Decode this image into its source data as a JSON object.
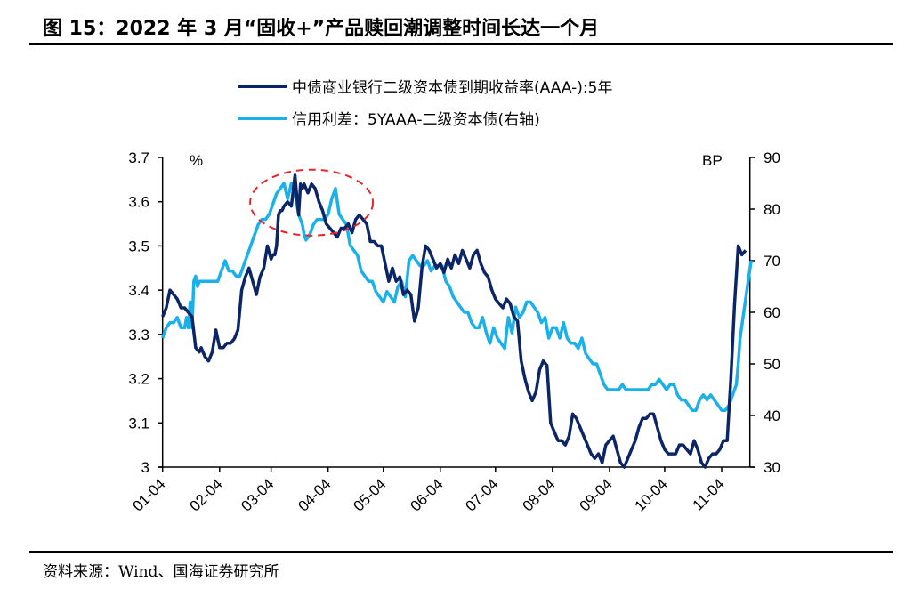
{
  "title": "图 15：2022 年 3 月“固收+”产品赎回潮调整时间长达一个月",
  "source": "资料来源：Wind、国海证券研究所",
  "colors": {
    "yield": "#0b2566",
    "spread": "#1ab0ea",
    "highlight": "#e8242b"
  },
  "chart_data": {
    "type": "line",
    "title": "2022 年 3 月“固收+”产品赎回潮调整时间长达一个月",
    "xlabel": "",
    "ylabel": "%",
    "y2label": "BP",
    "ylim": [
      3.0,
      3.7
    ],
    "y2lim": [
      30,
      90
    ],
    "yticks": [
      "3",
      "3.1",
      "3.2",
      "3.3",
      "3.4",
      "3.5",
      "3.6",
      "3.7"
    ],
    "y2ticks": [
      "30",
      "40",
      "50",
      "60",
      "70",
      "80",
      "90"
    ],
    "x_tick_labels": [
      "01-04",
      "02-04",
      "03-04",
      "04-04",
      "05-04",
      "06-04",
      "07-04",
      "08-04",
      "09-04",
      "10-04",
      "11-04"
    ],
    "x_tick_days": [
      0,
      31,
      59,
      90,
      120,
      151,
      181,
      212,
      243,
      273,
      304
    ],
    "x_end_day": 320,
    "grid": false,
    "legend_position": "top",
    "annotation": "red dashed ellipse highlighting March 2022 peak",
    "annotation_center": {
      "day": 81,
      "value": 3.6
    },
    "series": [
      {
        "name": "中债商业银行二级资本债到期收益率(AAA-):5年",
        "axis": "left",
        "days": [
          0,
          2,
          4,
          6,
          8,
          10,
          12,
          14,
          16,
          18,
          20,
          21,
          23,
          25,
          27,
          29,
          31,
          33,
          35,
          37,
          39,
          41,
          43,
          45,
          47,
          49,
          51,
          53,
          55,
          57,
          59,
          60,
          61,
          62,
          63,
          64,
          65,
          66,
          68,
          70,
          72,
          73,
          74,
          75,
          76,
          77,
          79,
          81,
          83,
          85,
          87,
          89,
          91,
          93,
          95,
          97,
          99,
          101,
          103,
          105,
          107,
          109,
          111,
          113,
          115,
          117,
          119,
          121,
          123,
          125,
          127,
          129,
          131,
          133,
          135,
          137,
          139,
          141,
          143,
          145,
          147,
          149,
          151,
          153,
          155,
          157,
          159,
          161,
          163,
          165,
          167,
          169,
          171,
          173,
          175,
          177,
          179,
          181,
          183,
          185,
          187,
          189,
          191,
          193,
          195,
          197,
          199,
          201,
          203,
          205,
          207,
          209,
          211,
          213,
          215,
          217,
          219,
          221,
          223,
          225,
          227,
          229,
          231,
          233,
          235,
          237,
          239,
          241,
          243,
          245,
          247,
          249,
          251,
          253,
          255,
          257,
          259,
          261,
          263,
          265,
          267,
          269,
          271,
          273,
          275,
          277,
          279,
          281,
          283,
          285,
          287,
          289,
          291,
          293,
          295,
          297,
          299,
          301,
          303,
          305,
          307,
          309,
          311,
          313,
          315,
          317,
          318,
          319,
          320
        ],
        "values": [
          3.34,
          3.36,
          3.4,
          3.39,
          3.38,
          3.36,
          3.36,
          3.35,
          3.34,
          3.27,
          3.26,
          3.27,
          3.25,
          3.24,
          3.26,
          3.31,
          3.27,
          3.27,
          3.28,
          3.28,
          3.29,
          3.31,
          3.4,
          3.43,
          3.45,
          3.42,
          3.39,
          3.43,
          3.45,
          3.5,
          3.47,
          3.48,
          3.48,
          3.5,
          3.57,
          3.58,
          3.58,
          3.59,
          3.6,
          3.59,
          3.66,
          3.61,
          3.57,
          3.64,
          3.63,
          3.64,
          3.62,
          3.64,
          3.63,
          3.6,
          3.58,
          3.55,
          3.54,
          3.53,
          3.52,
          3.54,
          3.54,
          3.55,
          3.53,
          3.56,
          3.57,
          3.56,
          3.55,
          3.51,
          3.51,
          3.5,
          3.5,
          3.46,
          3.42,
          3.45,
          3.42,
          3.43,
          3.39,
          3.4,
          3.39,
          3.33,
          3.36,
          3.45,
          3.5,
          3.49,
          3.47,
          3.45,
          3.46,
          3.44,
          3.47,
          3.45,
          3.48,
          3.46,
          3.49,
          3.47,
          3.45,
          3.48,
          3.49,
          3.46,
          3.44,
          3.43,
          3.4,
          3.38,
          3.37,
          3.36,
          3.38,
          3.37,
          3.34,
          3.33,
          3.24,
          3.2,
          3.17,
          3.15,
          3.17,
          3.22,
          3.24,
          3.23,
          3.1,
          3.08,
          3.06,
          3.06,
          3.05,
          3.07,
          3.12,
          3.11,
          3.09,
          3.07,
          3.05,
          3.03,
          3.02,
          3.03,
          3.01,
          3.05,
          3.06,
          3.07,
          3.04,
          3.01,
          3.0,
          3.02,
          3.04,
          3.06,
          3.09,
          3.11,
          3.11,
          3.12,
          3.12,
          3.09,
          3.06,
          3.04,
          3.03,
          3.03,
          3.03,
          3.05,
          3.05,
          3.04,
          3.03,
          3.06,
          3.04,
          3.01,
          3.0,
          3.02,
          3.03,
          3.03,
          3.04,
          3.06,
          3.06,
          3.2,
          3.37,
          3.5,
          3.48,
          3.49
        ]
      },
      {
        "name": "信用利差：5YAAA-二级资本债(右轴)",
        "axis": "right",
        "days": [
          0,
          2,
          4,
          6,
          8,
          10,
          12,
          13,
          14,
          15,
          16,
          17,
          18,
          19,
          20,
          22,
          24,
          26,
          28,
          30,
          32,
          34,
          36,
          38,
          40,
          42,
          44,
          46,
          48,
          50,
          52,
          54,
          56,
          58,
          60,
          61,
          62,
          64,
          66,
          68,
          70,
          72,
          74,
          76,
          77,
          78,
          80,
          82,
          84,
          86,
          88,
          90,
          92,
          94,
          96,
          98,
          100,
          102,
          104,
          106,
          108,
          110,
          112,
          114,
          116,
          118,
          120,
          122,
          124,
          126,
          128,
          130,
          132,
          134,
          136,
          138,
          140,
          142,
          144,
          146,
          148,
          150,
          152,
          154,
          156,
          158,
          160,
          162,
          164,
          166,
          168,
          170,
          172,
          174,
          176,
          178,
          180,
          182,
          184,
          186,
          188,
          190,
          192,
          194,
          196,
          198,
          200,
          202,
          204,
          206,
          208,
          210,
          212,
          214,
          216,
          218,
          220,
          222,
          224,
          226,
          228,
          230,
          232,
          234,
          236,
          238,
          240,
          242,
          244,
          246,
          248,
          250,
          252,
          254,
          256,
          258,
          260,
          262,
          264,
          266,
          268,
          270,
          272,
          274,
          276,
          278,
          280,
          282,
          284,
          286,
          288,
          290,
          292,
          294,
          296,
          298,
          300,
          302,
          304,
          306,
          308,
          310,
          312,
          313,
          314,
          316,
          318,
          320
        ],
        "values": [
          55,
          57,
          58,
          58,
          59,
          57,
          57,
          59,
          57,
          62,
          57,
          66,
          67,
          65,
          66,
          66,
          66,
          66,
          66,
          66,
          68,
          70,
          68,
          68,
          67,
          67,
          69,
          71,
          73,
          75,
          77,
          78,
          78,
          79,
          81,
          82,
          83,
          84,
          85,
          82,
          85,
          83,
          79,
          77,
          75,
          74,
          75,
          77,
          78,
          78,
          78,
          79,
          82,
          84,
          79,
          78,
          77,
          73,
          72,
          71,
          68,
          67,
          66,
          66,
          64,
          63,
          62,
          64,
          63,
          62,
          65,
          66,
          63,
          70,
          71,
          70,
          69,
          69,
          70,
          68,
          69,
          69,
          69,
          66,
          65,
          63,
          62,
          61,
          60,
          60,
          58,
          57,
          57,
          59,
          56,
          54,
          57,
          55,
          54,
          53,
          59,
          56,
          61,
          59,
          60,
          62,
          62,
          61,
          60,
          58,
          59,
          55,
          57,
          57,
          55,
          58,
          55,
          54,
          54,
          53,
          55,
          52,
          51,
          50,
          50,
          48,
          46,
          45,
          45,
          45,
          45,
          46,
          45,
          45,
          45,
          45,
          45,
          45,
          45,
          46,
          46,
          47,
          46,
          45,
          46,
          46,
          44,
          43,
          43,
          42,
          41,
          41,
          43,
          44,
          43,
          44,
          43,
          42,
          41,
          41,
          42,
          44,
          46,
          50,
          55,
          60,
          65,
          70
        ]
      }
    ]
  }
}
